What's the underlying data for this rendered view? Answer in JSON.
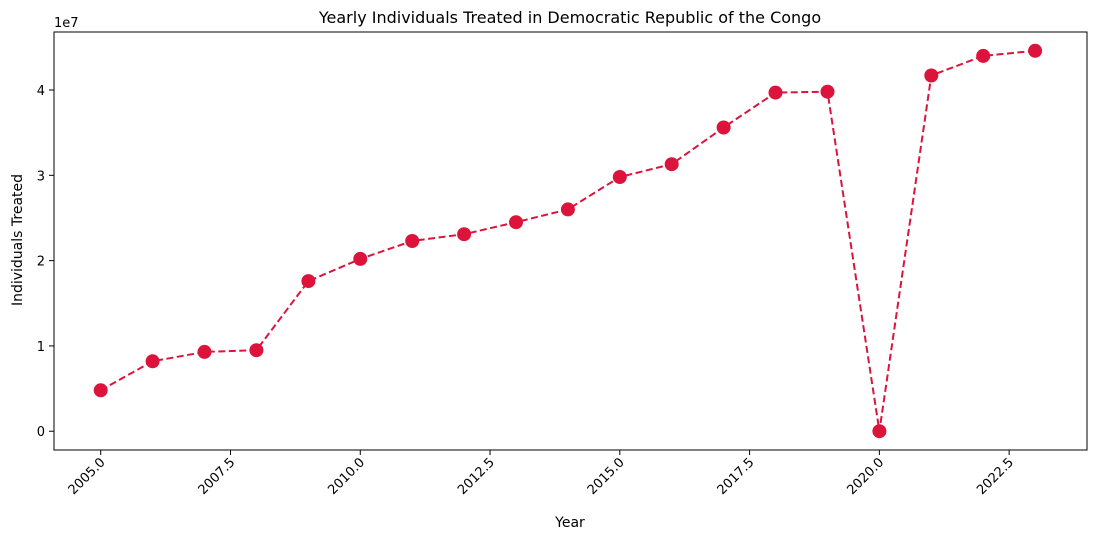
{
  "chart_data": {
    "type": "line",
    "title": "Yearly Individuals Treated in Democratic Republic of the Congo",
    "xlabel": "Year",
    "ylabel": "Individuals Treated",
    "y_offset_label": "1e7",
    "xlim": [
      2004.1,
      2024.0
    ],
    "ylim": [
      -2200000,
      46800000
    ],
    "x_ticks": [
      2005.0,
      2007.5,
      2010.0,
      2012.5,
      2015.0,
      2017.5,
      2020.0,
      2022.5
    ],
    "x_tick_labels": [
      "2005.0",
      "2007.5",
      "2010.0",
      "2012.5",
      "2015.0",
      "2017.5",
      "2020.0",
      "2022.5"
    ],
    "y_ticks": [
      0,
      10000000,
      20000000,
      30000000,
      40000000
    ],
    "y_tick_labels": [
      "0",
      "1",
      "2",
      "3",
      "4"
    ],
    "grid": false,
    "series": [
      {
        "color": "#dc143c",
        "line_style": "dashed",
        "marker": "circle",
        "x": [
          2005,
          2006,
          2007,
          2008,
          2009,
          2010,
          2011,
          2012,
          2013,
          2014,
          2015,
          2016,
          2017,
          2018,
          2019,
          2020,
          2021,
          2022,
          2023
        ],
        "y": [
          4800000,
          8200000,
          9300000,
          9500000,
          17600000,
          20200000,
          22300000,
          23100000,
          24500000,
          26000000,
          29800000,
          31300000,
          35600000,
          39700000,
          39800000,
          0,
          41700000,
          44000000,
          44600000
        ]
      }
    ]
  }
}
